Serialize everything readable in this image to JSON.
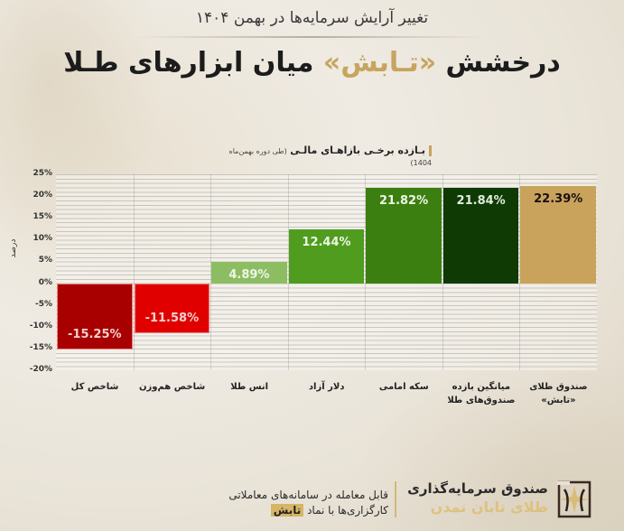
{
  "header": {
    "subtitle": "تغییر آرایش سرمایه‌ها در بهمن ۱۴۰۴",
    "title_part1": "درخشش ",
    "title_highlight": "«تـابش»",
    "title_part2": " میان ابزارهای طـلا"
  },
  "chart_header": {
    "label": "بـازده برخـی بازاهـای مالـی",
    "note": "(طی دوره بهمن‌ماه 1404)"
  },
  "chart_data": {
    "type": "bar",
    "title": "بازده برخی بازارهای مالی (طی دوره بهمن‌ماه 1404)",
    "xlabel": "",
    "ylabel": "درصد",
    "ylim": [
      -20,
      25
    ],
    "y_ticks": [
      "25%",
      "20%",
      "15%",
      "10%",
      "5%",
      "0%",
      "-5%",
      "-10%",
      "-15%",
      "-20%"
    ],
    "grid": true,
    "categories": [
      "شاخص کل",
      "شاخص هم‌وزن",
      "انس طلا",
      "دلار آزاد",
      "سکه امامی",
      "میانگین بازده صندوق‌های طلا",
      "صندوق طلای «تابش»"
    ],
    "values": [
      -15.25,
      -11.58,
      4.89,
      12.44,
      21.82,
      21.84,
      22.39
    ],
    "value_labels": [
      "-15.25%",
      "-11.58%",
      "4.89%",
      "12.44%",
      "21.82%",
      "21.84%",
      "22.39%"
    ],
    "colors": [
      "#a80000",
      "#e00000",
      "#8dbd62",
      "#4f9c1e",
      "#3c7f11",
      "#0f3a04",
      "#c9a35c"
    ],
    "label_colors": [
      "#f4d0d0",
      "#f6d2d2",
      "#eef6e6",
      "#eef6e6",
      "#eef6e6",
      "#dfeedd",
      "#1a1010"
    ]
  },
  "x_labels": [
    {
      "line1": "شاخص کل",
      "line2": ""
    },
    {
      "line1": "شاخص هم‌وزن",
      "line2": ""
    },
    {
      "line1": "انس طلا",
      "line2": ""
    },
    {
      "line1": "دلار آزاد",
      "line2": ""
    },
    {
      "line1": "سکه امامی",
      "line2": ""
    },
    {
      "line1": "میانگین بازده",
      "line2": "صندوق‌های طلا"
    },
    {
      "line1": "صندوق طلای",
      "line2": "«تابش»"
    }
  ],
  "footer": {
    "line1": "قابل معامله در سامانه‌های معاملاتی",
    "line2": "کارگزاری‌ها با نماد ",
    "symbol": "تابش",
    "brand_line1": "صندوق سرمایه‌گذاری",
    "brand_line2": "طلای تابان تمدن"
  }
}
